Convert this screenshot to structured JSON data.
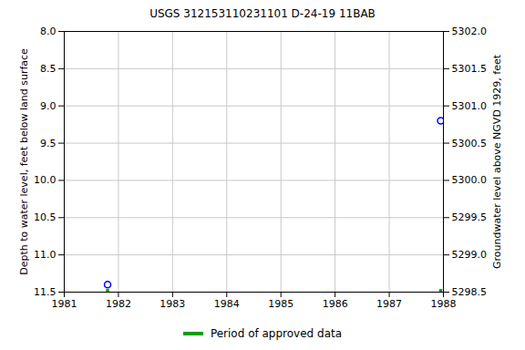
{
  "chart_data": {
    "type": "scatter",
    "title": "USGS 312153110231101 D-24-19 11BAB",
    "y_label": "Depth to water level, feet below land surface",
    "y2_label": "Groundwater level above NGVD 1929, feet",
    "xlim": [
      1981,
      1988
    ],
    "xticks": [
      1981,
      1982,
      1983,
      1984,
      1985,
      1986,
      1987,
      1988
    ],
    "ylim": [
      11.5,
      8.0
    ],
    "yticks": [
      {
        "value": 8.0,
        "label": "8.0"
      },
      8.5,
      {
        "value": 9.0,
        "label": "9.0"
      },
      9.5,
      {
        "value": 10.0,
        "label": "10.0"
      },
      10.5,
      {
        "value": 11.0,
        "label": "11.0"
      },
      11.5
    ],
    "y2lim": [
      5298.5,
      5302.0
    ],
    "y2ticks": [
      5298.5,
      {
        "value": 5299.0,
        "label": "5299.0"
      },
      5299.5,
      {
        "value": 5300.0,
        "label": "5300.0"
      },
      5300.5,
      {
        "value": 5301.0,
        "label": "5301.0"
      },
      5301.5,
      {
        "value": 5302.0,
        "label": "5302.0"
      }
    ],
    "grid": true,
    "series": [
      {
        "x": [
          1981.8,
          1987.95
        ],
        "values": [
          11.4,
          9.2
        ],
        "color": "#0000ff",
        "marker": "circle"
      },
      {
        "name": "Period of approved data",
        "x": [
          1981.8,
          1987.95
        ],
        "values": [
          11.48,
          11.48
        ],
        "color": "#00a000",
        "marker": "square"
      }
    ]
  }
}
